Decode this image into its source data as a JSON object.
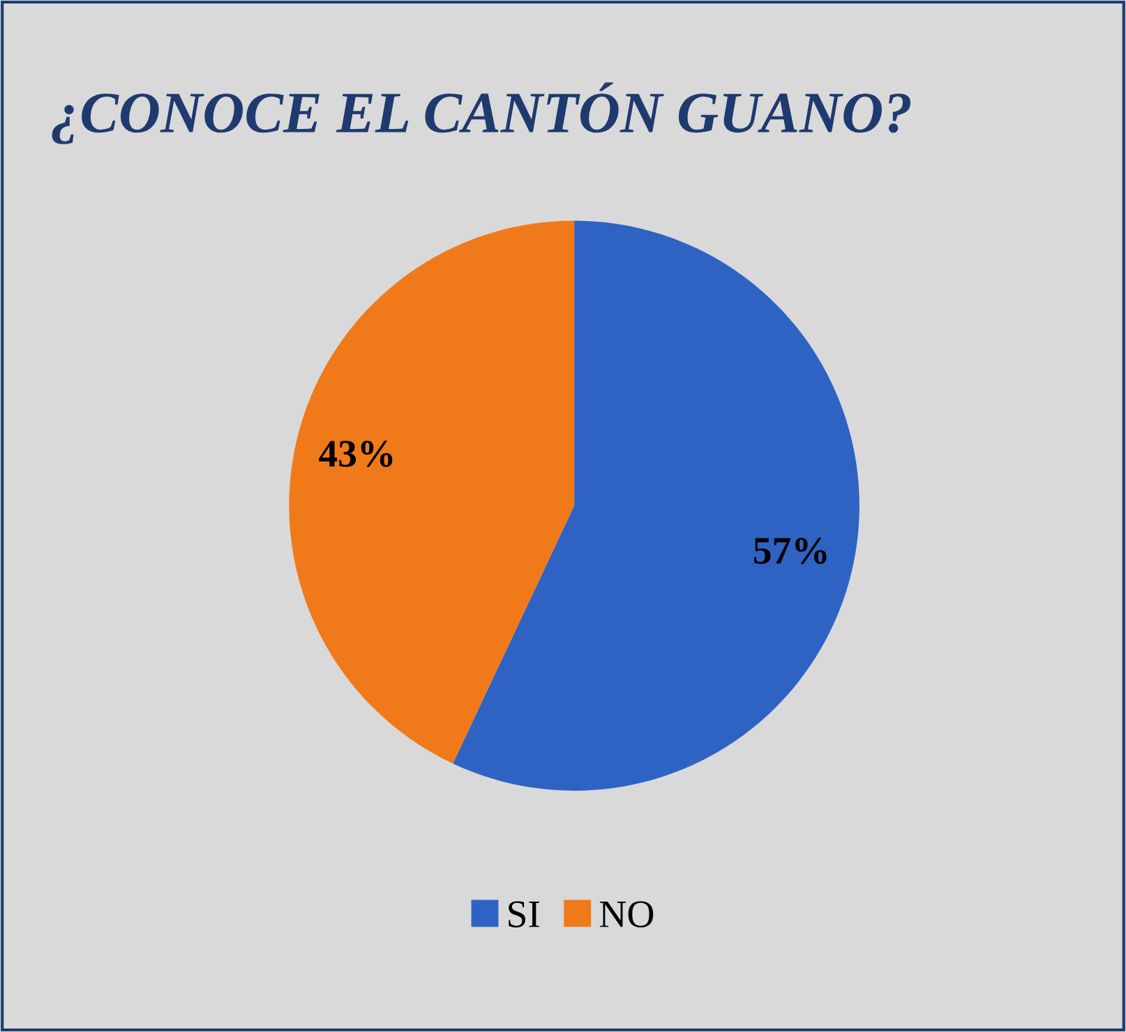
{
  "chart_data": {
    "type": "pie",
    "title": "¿CONOCE EL CANTÓN GUANO?",
    "categories": [
      "SI",
      "NO"
    ],
    "values": [
      57,
      43
    ],
    "value_labels": [
      "57%",
      "43%"
    ],
    "colors": [
      "#2e63c4",
      "#f07a1a"
    ],
    "legend": "bottom"
  }
}
